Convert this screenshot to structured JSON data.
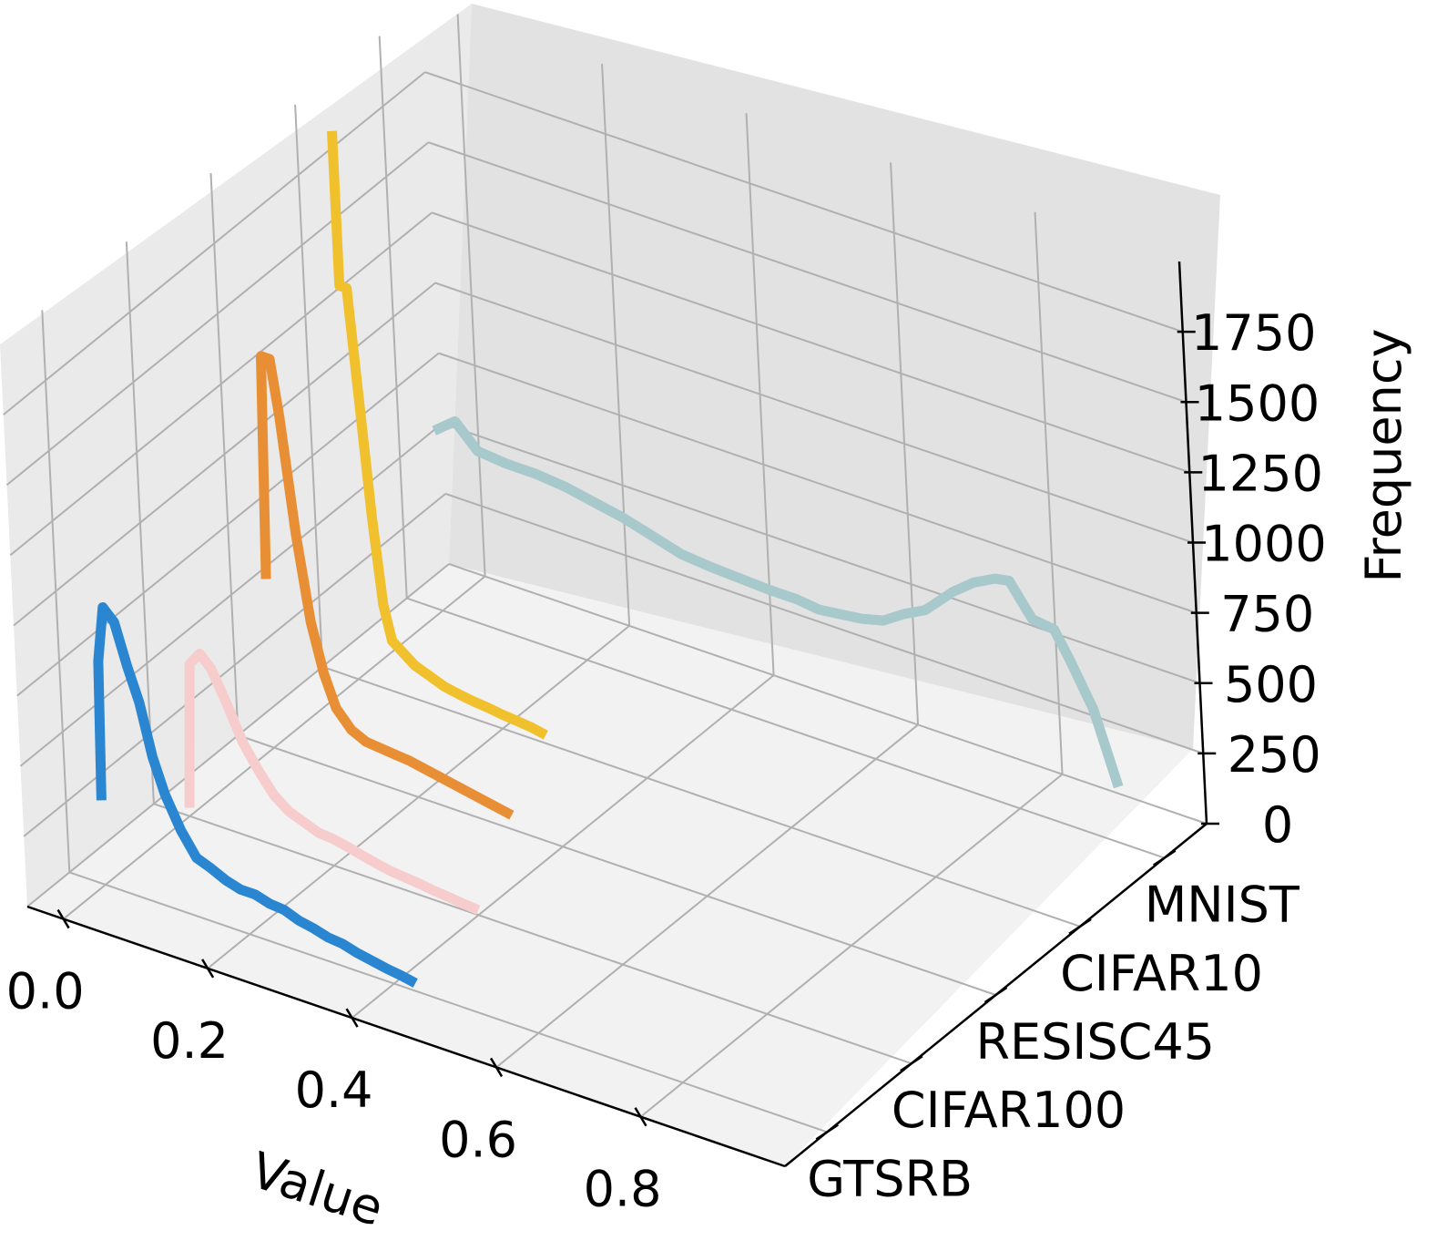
{
  "chart_data": {
    "type": "line",
    "projection": "3d",
    "xlabel": "Value",
    "zlabel": "Frequency",
    "xlim": [
      -0.05,
      1.0
    ],
    "zlim": [
      0,
      2000
    ],
    "x_ticks": [
      0.0,
      0.2,
      0.4,
      0.6,
      0.8
    ],
    "x_tick_labels": [
      "0.0",
      "0.2",
      "0.4",
      "0.6",
      "0.8"
    ],
    "z_ticks": [
      0,
      250,
      500,
      750,
      1000,
      1250,
      1500,
      1750
    ],
    "z_tick_labels": [
      "0",
      "250",
      "500",
      "750",
      "1000",
      "1250",
      "1500",
      "1750"
    ],
    "y_categories": [
      "GTSRB",
      "CIFAR100",
      "RESISC45",
      "CIFAR10",
      "MNIST"
    ],
    "grid": true,
    "series": [
      {
        "name": "GTSRB",
        "color": "#2a86d1",
        "x": [
          0.0,
          0.005,
          0.015,
          0.03,
          0.045,
          0.06,
          0.075,
          0.09,
          0.11,
          0.13,
          0.15,
          0.17,
          0.19,
          0.21,
          0.23,
          0.25,
          0.27,
          0.29,
          0.31,
          0.33,
          0.35,
          0.37,
          0.39,
          0.41,
          0.43
        ],
        "y": [
          300,
          800,
          1000,
          960,
          820,
          700,
          520,
          400,
          290,
          210,
          190,
          165,
          150,
          150,
          135,
          130,
          110,
          100,
          85,
          80,
          65,
          55,
          45,
          38,
          28
        ]
      },
      {
        "name": "CIFAR100",
        "color": "#f6cdcc",
        "x": [
          0.0,
          0.01,
          0.025,
          0.04,
          0.06,
          0.08,
          0.1,
          0.12,
          0.14,
          0.16,
          0.18,
          0.2,
          0.22,
          0.24,
          0.26,
          0.28,
          0.3,
          0.32,
          0.34,
          0.36,
          0.38,
          0.4
        ],
        "y": [
          30,
          550,
          600,
          560,
          450,
          330,
          250,
          180,
          140,
          120,
          100,
          95,
          85,
          72,
          60,
          50,
          45,
          40,
          33,
          28,
          22,
          18
        ]
      },
      {
        "name": "RESISC45",
        "color": "#e88f36",
        "x": [
          0.0,
          0.008,
          0.02,
          0.03,
          0.045,
          0.06,
          0.075,
          0.09,
          0.11,
          0.13,
          0.15,
          0.17,
          0.19,
          0.21,
          0.23,
          0.25,
          0.27,
          0.29,
          0.31,
          0.33
        ],
        "y": [
          600,
          1400,
          1400,
          1200,
          800,
          500,
          330,
          220,
          160,
          135,
          130,
          125,
          120,
          110,
          100,
          90,
          80,
          70,
          60,
          50
        ]
      },
      {
        "name": "CIFAR10",
        "color": "#f0c02d",
        "x": [
          0.0,
          0.0,
          0.01,
          0.02,
          0.03,
          0.04,
          0.05,
          0.065,
          0.08,
          0.1,
          0.12,
          0.14,
          0.16,
          0.18,
          0.2,
          0.22,
          0.24,
          0.26
        ],
        "y": [
          1950,
          1400,
          1400,
          1000,
          600,
          300,
          180,
          150,
          120,
          100,
          80,
          70,
          62,
          57,
          50,
          45,
          40,
          30
        ]
      },
      {
        "name": "MNIST",
        "color": "#a7c9cc",
        "x": [
          0.0,
          0.03,
          0.06,
          0.1,
          0.14,
          0.18,
          0.22,
          0.26,
          0.3,
          0.34,
          0.38,
          0.42,
          0.46,
          0.5,
          0.53,
          0.56,
          0.59,
          0.62,
          0.65,
          0.68,
          0.7,
          0.72,
          0.75,
          0.78,
          0.8,
          0.83,
          0.86,
          0.88,
          0.91,
          0.94
        ],
        "y": [
          640,
          700,
          620,
          610,
          610,
          600,
          580,
          560,
          530,
          500,
          490,
          485,
          480,
          480,
          470,
          480,
          490,
          510,
          560,
          600,
          650,
          700,
          760,
          800,
          810,
          700,
          690,
          600,
          450,
          200
        ]
      }
    ]
  }
}
